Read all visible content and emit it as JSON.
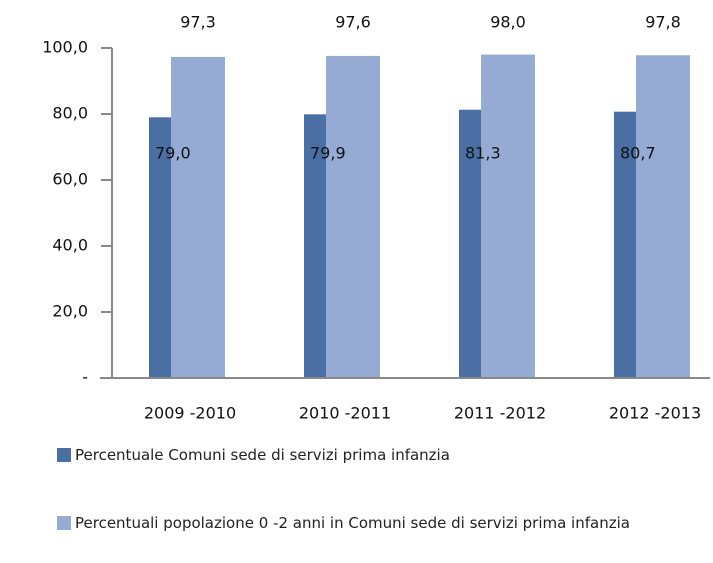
{
  "chart_data": {
    "type": "bar",
    "categories": [
      "2009 -2010",
      "2010 -2011",
      "2011 -2012",
      "2012 -2013"
    ],
    "series": [
      {
        "name": "Percentuale Comuni sede di servizi prima infanzia",
        "color": "#4a6fa5",
        "values": [
          79.0,
          79.9,
          81.3,
          80.7
        ],
        "value_labels": [
          "79,0",
          "79,9",
          "81,3",
          "80,7"
        ]
      },
      {
        "name": "Percentuali popolazione 0 -2 anni in Comuni sede di servizi prima infanzia",
        "color": "#95abd3",
        "values": [
          97.3,
          97.6,
          98.0,
          97.8
        ],
        "value_labels": [
          "97,3",
          "97,6",
          "98,0",
          "97,8"
        ]
      }
    ],
    "ylim": [
      0,
      100
    ],
    "yticks": [
      {
        "value": 0,
        "label": "-"
      },
      {
        "value": 20,
        "label": "20,0"
      },
      {
        "value": 40,
        "label": "40,0"
      },
      {
        "value": 60,
        "label": "60,0"
      },
      {
        "value": 80,
        "label": "80,0"
      },
      {
        "value": 100,
        "label": "100,0"
      }
    ]
  }
}
